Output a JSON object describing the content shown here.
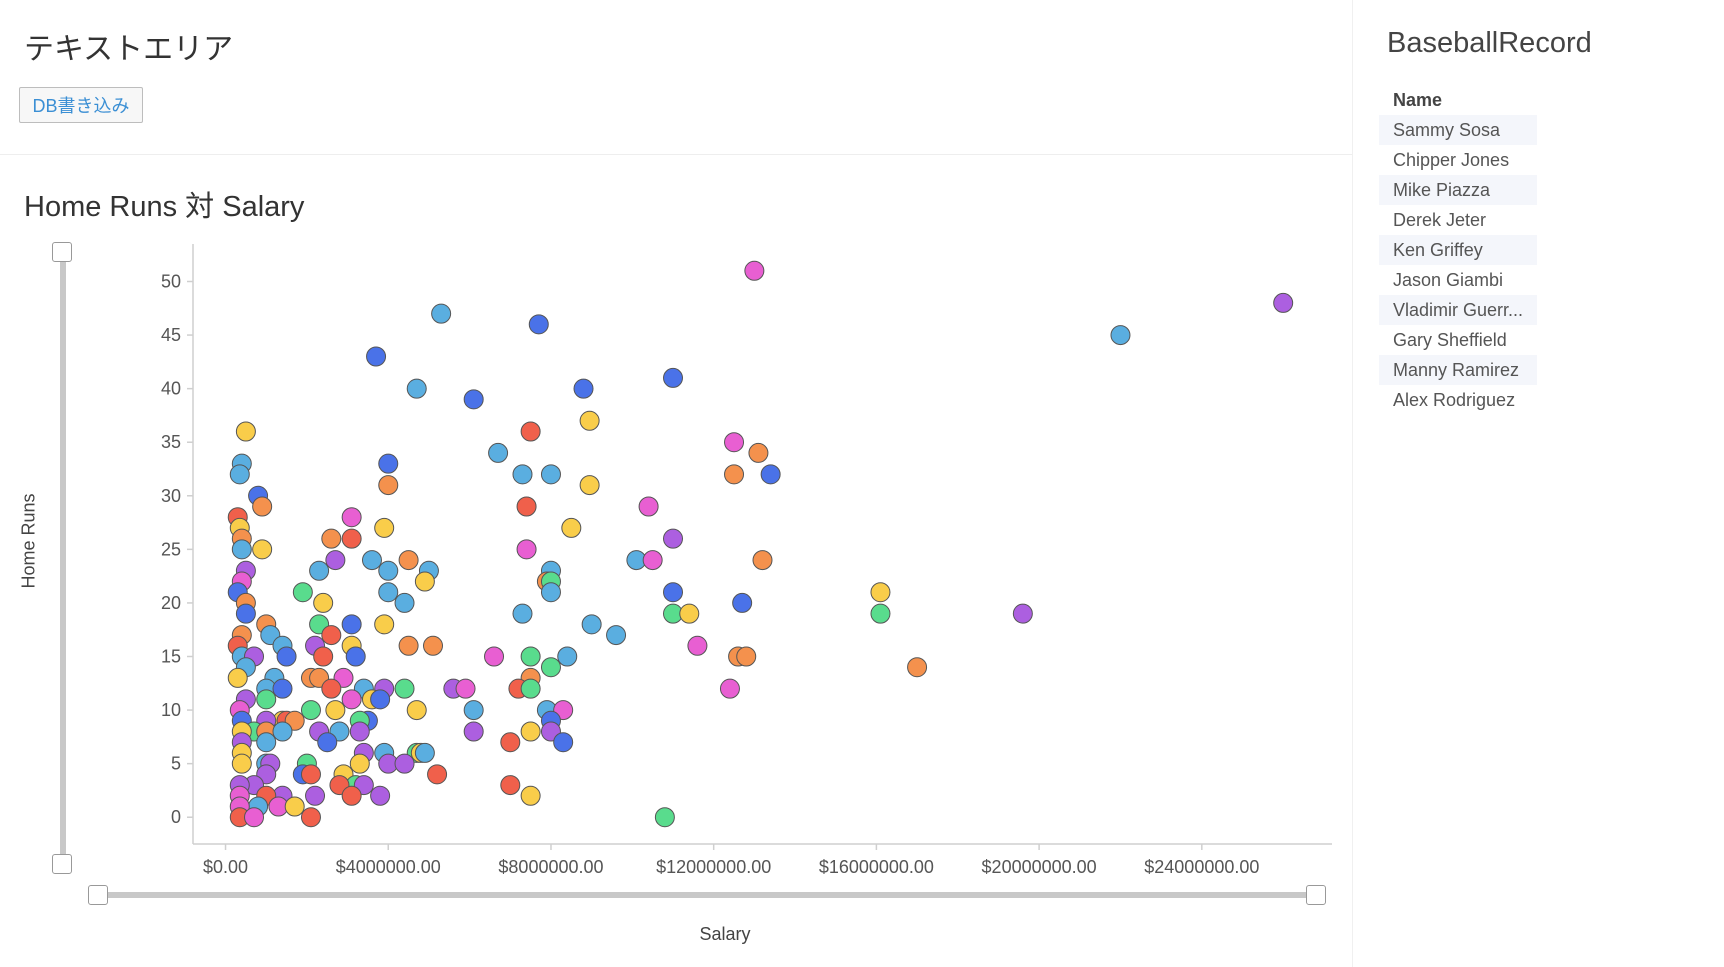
{
  "header": {
    "text_area_title": "テキストエリア",
    "db_button_label": "DB書き込み"
  },
  "chart_title": "Home Runs 対 Salary",
  "record_panel": {
    "title": "BaseballRecord",
    "column_header": "Name",
    "names": [
      "Sammy Sosa",
      "Chipper Jones",
      "Mike Piazza",
      "Derek Jeter",
      "Ken Griffey",
      "Jason Giambi",
      "Vladimir Guerr...",
      "Gary Sheffield",
      "Manny Ramirez",
      "Alex Rodriguez"
    ]
  },
  "palette": [
    "#5aaee0",
    "#4a72e8",
    "#f0604b",
    "#f4914d",
    "#f9cd4a",
    "#59dc8d",
    "#e85fd2",
    "#ac5fe0"
  ],
  "chart_data": {
    "type": "scatter",
    "xlabel": "Salary",
    "ylabel": "Home Runs",
    "xlim": [
      -800000,
      27200000
    ],
    "ylim": [
      -2.5,
      53.5
    ],
    "x_ticks": [
      0,
      4000000,
      8000000,
      12000000,
      16000000,
      20000000,
      24000000
    ],
    "x_tick_labels": [
      "$0.00",
      "$4000000.00",
      "$8000000.00",
      "$12000000.00",
      "$16000000.00",
      "$20000000.00",
      "$24000000.00"
    ],
    "y_ticks": [
      0,
      5,
      10,
      15,
      20,
      25,
      30,
      35,
      40,
      45,
      50
    ],
    "y_tick_labels": [
      "0",
      "5",
      "10",
      "15",
      "20",
      "25",
      "30",
      "35",
      "40",
      "45",
      "50"
    ],
    "points": [
      [
        13000000,
        51,
        6
      ],
      [
        26000000,
        48,
        7
      ],
      [
        22000000,
        45,
        0
      ],
      [
        5300000,
        47,
        0
      ],
      [
        7700000,
        46,
        1
      ],
      [
        3700000,
        43,
        1
      ],
      [
        4700000,
        40,
        0
      ],
      [
        6100000,
        39,
        1
      ],
      [
        8800000,
        40,
        1
      ],
      [
        11000000,
        41,
        1
      ],
      [
        8950000,
        37,
        4
      ],
      [
        7500000,
        36,
        2
      ],
      [
        500000,
        36,
        4
      ],
      [
        6700000,
        34,
        0
      ],
      [
        4000000,
        33,
        1
      ],
      [
        400000,
        33,
        0
      ],
      [
        350000,
        32,
        0
      ],
      [
        7300000,
        32,
        0
      ],
      [
        8000000,
        32,
        0
      ],
      [
        12500000,
        32,
        3
      ],
      [
        13400000,
        32,
        1
      ],
      [
        12500000,
        35,
        6
      ],
      [
        13100000,
        34,
        3
      ],
      [
        4000000,
        31,
        3
      ],
      [
        8950000,
        31,
        4
      ],
      [
        800000,
        30,
        1
      ],
      [
        900000,
        29,
        3
      ],
      [
        7400000,
        29,
        2
      ],
      [
        10400000,
        29,
        6
      ],
      [
        300000,
        28,
        2
      ],
      [
        3100000,
        28,
        6
      ],
      [
        3900000,
        27,
        4
      ],
      [
        350000,
        27,
        4
      ],
      [
        8500000,
        27,
        4
      ],
      [
        400000,
        26,
        3
      ],
      [
        2600000,
        26,
        3
      ],
      [
        3100000,
        26,
        2
      ],
      [
        11000000,
        26,
        7
      ],
      [
        400000,
        25,
        0
      ],
      [
        900000,
        25,
        4
      ],
      [
        7400000,
        25,
        6
      ],
      [
        3600000,
        24,
        0
      ],
      [
        4500000,
        24,
        3
      ],
      [
        2700000,
        24,
        7
      ],
      [
        10100000,
        24,
        0
      ],
      [
        10500000,
        24,
        6
      ],
      [
        13200000,
        24,
        3
      ],
      [
        2300000,
        23,
        0
      ],
      [
        4000000,
        23,
        0
      ],
      [
        5000000,
        23,
        0
      ],
      [
        500000,
        23,
        7
      ],
      [
        8000000,
        23,
        0
      ],
      [
        7900000,
        22,
        3
      ],
      [
        4900000,
        22,
        4
      ],
      [
        400000,
        22,
        6
      ],
      [
        8000000,
        22,
        5
      ],
      [
        8000000,
        21,
        0
      ],
      [
        4000000,
        21,
        0
      ],
      [
        1900000,
        21,
        5
      ],
      [
        11000000,
        21,
        1
      ],
      [
        16100000,
        21,
        4
      ],
      [
        300000,
        21,
        1
      ],
      [
        2400000,
        20,
        4
      ],
      [
        4400000,
        20,
        0
      ],
      [
        500000,
        20,
        3
      ],
      [
        12700000,
        20,
        1
      ],
      [
        500000,
        19,
        1
      ],
      [
        7300000,
        19,
        0
      ],
      [
        11000000,
        19,
        5
      ],
      [
        11400000,
        19,
        4
      ],
      [
        16100000,
        19,
        5
      ],
      [
        19600000,
        19,
        7
      ],
      [
        3900000,
        18,
        4
      ],
      [
        3100000,
        18,
        1
      ],
      [
        2300000,
        18,
        5
      ],
      [
        1000000,
        18,
        3
      ],
      [
        9000000,
        18,
        0
      ],
      [
        9600000,
        17,
        0
      ],
      [
        1100000,
        17,
        0
      ],
      [
        400000,
        17,
        3
      ],
      [
        2600000,
        17,
        2
      ],
      [
        1400000,
        16,
        0
      ],
      [
        2200000,
        16,
        7
      ],
      [
        3100000,
        16,
        4
      ],
      [
        4500000,
        16,
        3
      ],
      [
        5100000,
        16,
        3
      ],
      [
        11600000,
        16,
        6
      ],
      [
        300000,
        16,
        2
      ],
      [
        3200000,
        15,
        1
      ],
      [
        1500000,
        15,
        1
      ],
      [
        2400000,
        15,
        2
      ],
      [
        400000,
        15,
        0
      ],
      [
        700000,
        15,
        7
      ],
      [
        6600000,
        15,
        6
      ],
      [
        7500000,
        15,
        5
      ],
      [
        8400000,
        15,
        0
      ],
      [
        12600000,
        15,
        3
      ],
      [
        12800000,
        15,
        3
      ],
      [
        17000000,
        14,
        3
      ],
      [
        500000,
        14,
        0
      ],
      [
        8000000,
        14,
        5
      ],
      [
        300000,
        13,
        4
      ],
      [
        1200000,
        13,
        0
      ],
      [
        2100000,
        13,
        3
      ],
      [
        2300000,
        13,
        3
      ],
      [
        7500000,
        13,
        3
      ],
      [
        2900000,
        13,
        6
      ],
      [
        1000000,
        12,
        0
      ],
      [
        1400000,
        12,
        1
      ],
      [
        2600000,
        12,
        2
      ],
      [
        3400000,
        12,
        0
      ],
      [
        3900000,
        12,
        7
      ],
      [
        4400000,
        12,
        5
      ],
      [
        5600000,
        12,
        7
      ],
      [
        5900000,
        12,
        6
      ],
      [
        7200000,
        12,
        2
      ],
      [
        7500000,
        12,
        5
      ],
      [
        12400000,
        12,
        6
      ],
      [
        500000,
        11,
        7
      ],
      [
        1000000,
        11,
        5
      ],
      [
        3100000,
        11,
        6
      ],
      [
        3600000,
        11,
        4
      ],
      [
        3800000,
        11,
        1
      ],
      [
        2100000,
        10,
        5
      ],
      [
        2700000,
        10,
        4
      ],
      [
        4700000,
        10,
        4
      ],
      [
        6100000,
        10,
        0
      ],
      [
        7900000,
        10,
        0
      ],
      [
        8300000,
        10,
        6
      ],
      [
        350000,
        10,
        6
      ],
      [
        1400000,
        9,
        4
      ],
      [
        1500000,
        9,
        2
      ],
      [
        1700000,
        9,
        3
      ],
      [
        1000000,
        9,
        7
      ],
      [
        3500000,
        9,
        1
      ],
      [
        3300000,
        9,
        5
      ],
      [
        400000,
        9,
        1
      ],
      [
        8000000,
        9,
        1
      ],
      [
        700000,
        8,
        5
      ],
      [
        1000000,
        8,
        3
      ],
      [
        1400000,
        8,
        0
      ],
      [
        2300000,
        8,
        7
      ],
      [
        2800000,
        8,
        0
      ],
      [
        3300000,
        8,
        7
      ],
      [
        6100000,
        8,
        7
      ],
      [
        7500000,
        8,
        4
      ],
      [
        8000000,
        8,
        7
      ],
      [
        400000,
        8,
        4
      ],
      [
        1000000,
        7,
        0
      ],
      [
        2500000,
        7,
        1
      ],
      [
        7000000,
        7,
        2
      ],
      [
        8300000,
        7,
        1
      ],
      [
        400000,
        7,
        7
      ],
      [
        3400000,
        6,
        7
      ],
      [
        3900000,
        6,
        0
      ],
      [
        4700000,
        6,
        5
      ],
      [
        4800000,
        6,
        4
      ],
      [
        4900000,
        6,
        0
      ],
      [
        400000,
        6,
        4
      ],
      [
        1000000,
        5,
        0
      ],
      [
        1100000,
        5,
        7
      ],
      [
        2000000,
        5,
        5
      ],
      [
        3300000,
        5,
        4
      ],
      [
        4000000,
        5,
        7
      ],
      [
        4400000,
        5,
        7
      ],
      [
        400000,
        5,
        4
      ],
      [
        1000000,
        4,
        7
      ],
      [
        1900000,
        4,
        1
      ],
      [
        2100000,
        4,
        2
      ],
      [
        2900000,
        4,
        4
      ],
      [
        5200000,
        4,
        2
      ],
      [
        3200000,
        3,
        5
      ],
      [
        3400000,
        3,
        7
      ],
      [
        7000000,
        3,
        2
      ],
      [
        2800000,
        3,
        2
      ],
      [
        700000,
        3,
        7
      ],
      [
        350000,
        3,
        7
      ],
      [
        1400000,
        2,
        7
      ],
      [
        2200000,
        2,
        7
      ],
      [
        3100000,
        2,
        2
      ],
      [
        3800000,
        2,
        7
      ],
      [
        7500000,
        2,
        4
      ],
      [
        1000000,
        2,
        2
      ],
      [
        350000,
        2,
        6
      ],
      [
        800000,
        1,
        0
      ],
      [
        1300000,
        1,
        6
      ],
      [
        1700000,
        1,
        4
      ],
      [
        350000,
        1,
        6
      ],
      [
        10800000,
        0,
        5
      ],
      [
        2100000,
        0,
        2
      ],
      [
        350000,
        0,
        2
      ],
      [
        700000,
        0,
        6
      ]
    ]
  }
}
